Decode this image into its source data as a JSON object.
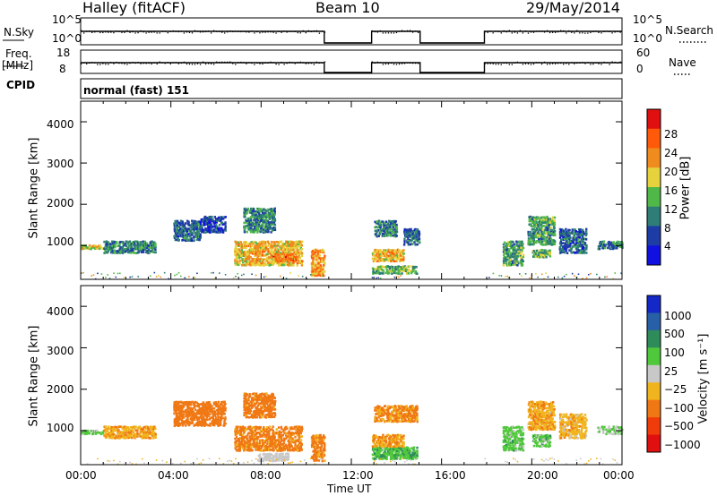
{
  "header": {
    "station": "Halley (fitACF)",
    "beam": "Beam 10",
    "date": "29/May/2014"
  },
  "aux_panels": {
    "nsky": {
      "label": "N.Sky",
      "top_tick": "10^5",
      "bottom_tick": "10^0"
    },
    "nsearch": {
      "label": "N.Search",
      "top_tick": "10^5",
      "bottom_tick": "10^0"
    },
    "freq": {
      "label_line1": "Freq.",
      "label_line2": "[MHz]",
      "top_tick": "18",
      "bottom_tick": "8"
    },
    "nave": {
      "label": "Nave",
      "top_tick": "60",
      "bottom_tick": "0"
    },
    "cpid": {
      "label": "CPID",
      "value": "normal (fast) 151"
    }
  },
  "chart_data": [
    {
      "type": "heatmap",
      "title": "",
      "xlabel": "Time UT",
      "ylabel": "Slant Range [km]",
      "xlim": [
        0,
        24
      ],
      "ylim": [
        180,
        4500
      ],
      "yticks": [
        "1000",
        "2000",
        "3000",
        "4000"
      ],
      "xticks": [
        "00:00",
        "04:00",
        "08:00",
        "12:00",
        "16:00",
        "20:00",
        "00:00"
      ],
      "colorbar": {
        "label": "Power [dB]",
        "ticks": [
          "4",
          "8",
          "12",
          "16",
          "20",
          "24",
          "28"
        ],
        "colors": [
          "#1010e0",
          "#1e3ca6",
          "#2e7d76",
          "#50b848",
          "#e6d23c",
          "#f08c1e",
          "#ff5a0a",
          "#e01010"
        ]
      },
      "data_gaps_hours": [
        [
          10.8,
          12.9
        ],
        [
          15.05,
          17.9
        ]
      ],
      "echo_regions": [
        {
          "t": [
            0.0,
            1.0
          ],
          "range_km": [
            900,
            1000
          ],
          "value": 18
        },
        {
          "t": [
            1.0,
            3.3
          ],
          "range_km": [
            800,
            1100
          ],
          "value": 10
        },
        {
          "t": [
            4.1,
            5.3
          ],
          "range_km": [
            1100,
            1600
          ],
          "value": 8
        },
        {
          "t": [
            5.3,
            6.4
          ],
          "range_km": [
            1300,
            1700
          ],
          "value": 6
        },
        {
          "t": [
            7.2,
            8.6
          ],
          "range_km": [
            1300,
            1900
          ],
          "value": 10
        },
        {
          "t": [
            6.8,
            9.8
          ],
          "range_km": [
            500,
            1100
          ],
          "value": 20
        },
        {
          "t": [
            8.5,
            9.6
          ],
          "range_km": [
            600,
            800
          ],
          "value": 24
        },
        {
          "t": [
            10.2,
            10.8
          ],
          "range_km": [
            250,
            900
          ],
          "value": 22
        },
        {
          "t": [
            12.9,
            14.9
          ],
          "range_km": [
            300,
            500
          ],
          "value": 14
        },
        {
          "t": [
            12.9,
            14.3
          ],
          "range_km": [
            600,
            900
          ],
          "value": 20
        },
        {
          "t": [
            13.0,
            14.0
          ],
          "range_km": [
            1200,
            1600
          ],
          "value": 10
        },
        {
          "t": [
            14.3,
            15.0
          ],
          "range_km": [
            1000,
            1400
          ],
          "value": 8
        },
        {
          "t": [
            18.7,
            19.6
          ],
          "range_km": [
            500,
            1100
          ],
          "value": 12
        },
        {
          "t": [
            19.8,
            21.0
          ],
          "range_km": [
            1000,
            1700
          ],
          "value": 12
        },
        {
          "t": [
            20.0,
            20.8
          ],
          "range_km": [
            700,
            900
          ],
          "value": 14
        },
        {
          "t": [
            21.2,
            22.4
          ],
          "range_km": [
            800,
            1400
          ],
          "value": 8
        },
        {
          "t": [
            22.9,
            24.0
          ],
          "range_km": [
            900,
            1100
          ],
          "value": 10
        }
      ]
    },
    {
      "type": "heatmap",
      "title": "",
      "xlabel": "Time UT",
      "ylabel": "Slant Range [km]",
      "xlim": [
        0,
        24
      ],
      "ylim": [
        180,
        4500
      ],
      "yticks": [
        "1000",
        "2000",
        "3000",
        "4000"
      ],
      "xticks": [
        "00:00",
        "04:00",
        "08:00",
        "12:00",
        "16:00",
        "20:00",
        "00:00"
      ],
      "colorbar": {
        "label": "Velocity [m s⁻¹]",
        "ticks": [
          "1000",
          "500",
          "100",
          "25",
          "−25",
          "−100",
          "−500",
          "−1000"
        ],
        "colors": [
          "#1428c8",
          "#2860a8",
          "#2e8c5a",
          "#50c83c",
          "#c8c8c8",
          "#f0b41e",
          "#f07814",
          "#f03c0a",
          "#e01010"
        ]
      },
      "data_gaps_hours": [
        [
          10.8,
          12.9
        ],
        [
          15.05,
          17.9
        ]
      ],
      "echo_regions": [
        {
          "t": [
            0.0,
            1.0
          ],
          "range_km": [
            900,
            1000
          ],
          "value": 50
        },
        {
          "t": [
            1.0,
            3.3
          ],
          "range_km": [
            800,
            1100
          ],
          "value": -80
        },
        {
          "t": [
            4.1,
            6.4
          ],
          "range_km": [
            1100,
            1700
          ],
          "value": -300
        },
        {
          "t": [
            7.2,
            8.6
          ],
          "range_km": [
            1300,
            1900
          ],
          "value": -200
        },
        {
          "t": [
            6.8,
            9.8
          ],
          "range_km": [
            500,
            1100
          ],
          "value": -150
        },
        {
          "t": [
            7.8,
            9.2
          ],
          "range_km": [
            250,
            450
          ],
          "value": 0
        },
        {
          "t": [
            10.2,
            10.8
          ],
          "range_km": [
            250,
            900
          ],
          "value": -150
        },
        {
          "t": [
            12.9,
            14.9
          ],
          "range_km": [
            300,
            600
          ],
          "value": 80
        },
        {
          "t": [
            12.9,
            14.3
          ],
          "range_km": [
            600,
            900
          ],
          "value": -90
        },
        {
          "t": [
            13.0,
            14.9
          ],
          "range_km": [
            1200,
            1600
          ],
          "value": -120
        },
        {
          "t": [
            18.7,
            19.6
          ],
          "range_km": [
            500,
            1100
          ],
          "value": 60
        },
        {
          "t": [
            19.8,
            21.0
          ],
          "range_km": [
            1000,
            1700
          ],
          "value": -80
        },
        {
          "t": [
            20.0,
            20.8
          ],
          "range_km": [
            600,
            900
          ],
          "value": 60
        },
        {
          "t": [
            21.2,
            22.4
          ],
          "range_km": [
            800,
            1400
          ],
          "value": -70
        },
        {
          "t": [
            22.9,
            24.0
          ],
          "range_km": [
            900,
            1100
          ],
          "value": 30
        }
      ]
    }
  ]
}
